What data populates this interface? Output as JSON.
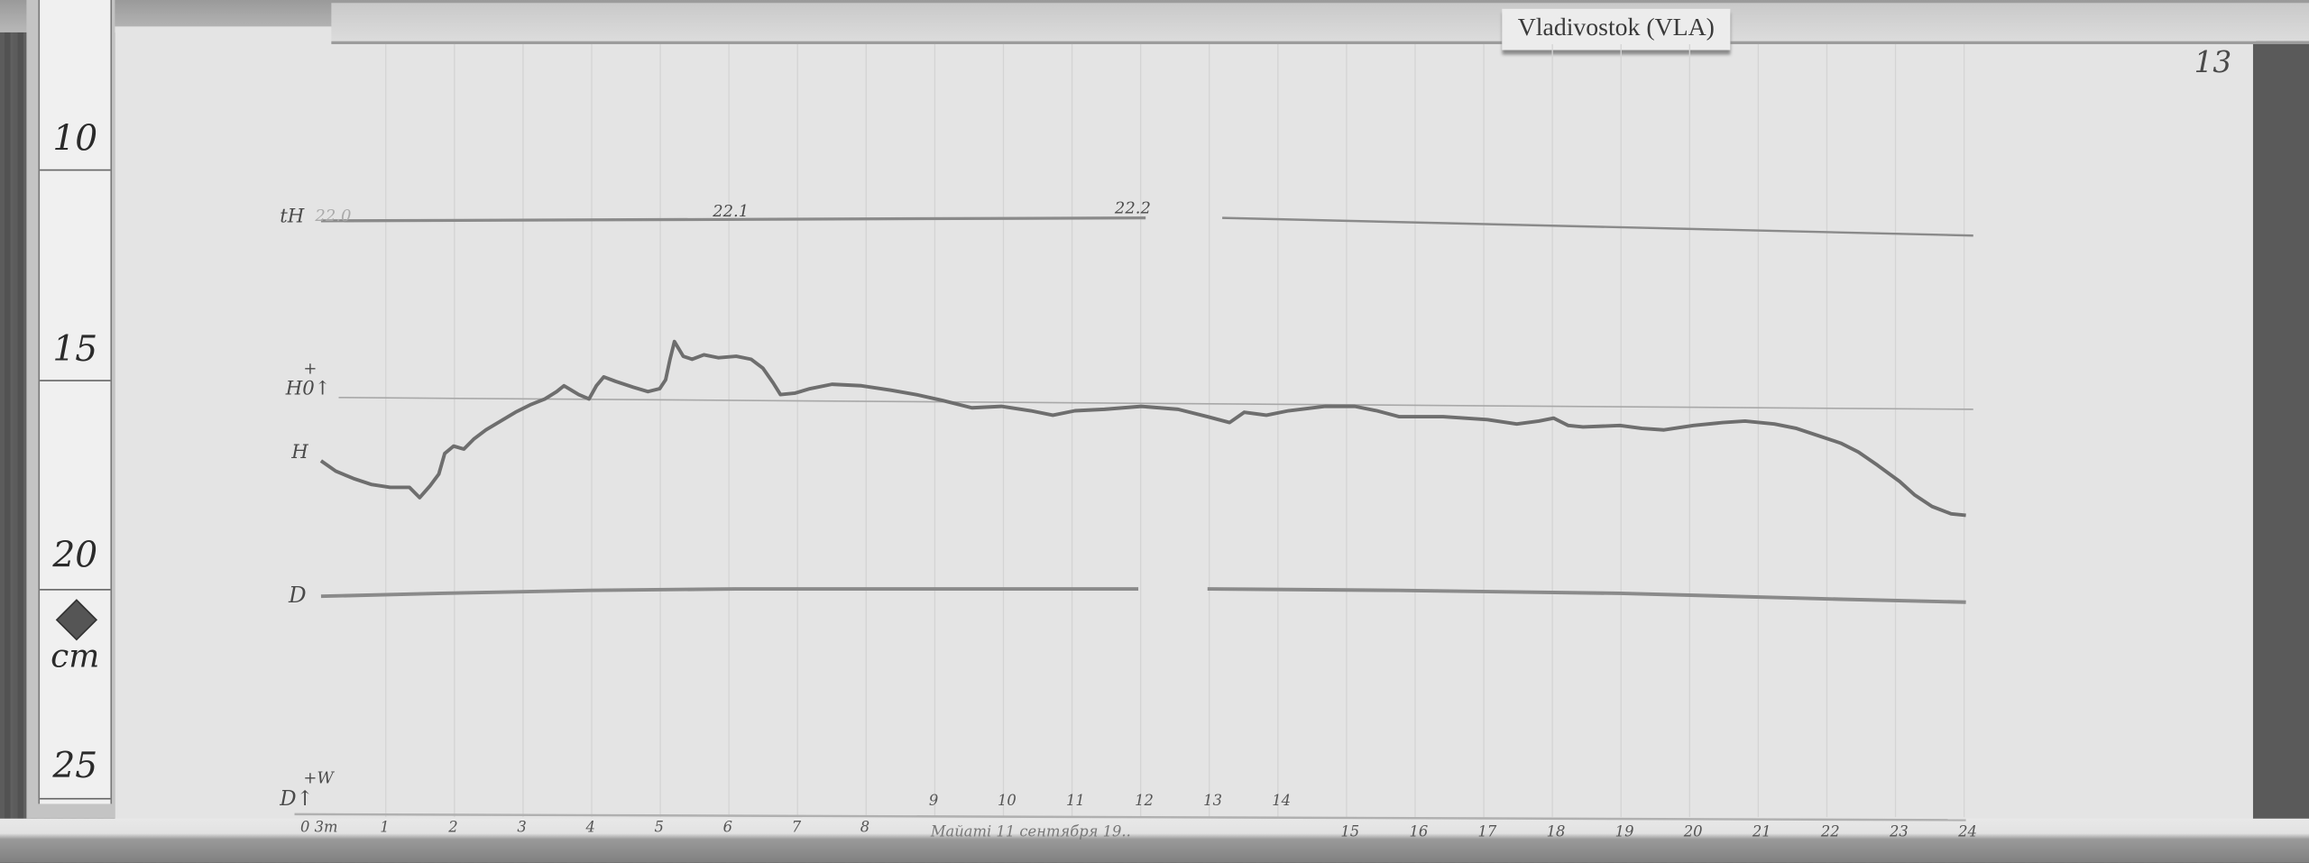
{
  "station_label": "Vladivostok (VLA)",
  "sheet_number": "13",
  "ruler": {
    "marks": [
      "10",
      "15",
      "20",
      "25"
    ],
    "unit": "cm"
  },
  "trace_labels": {
    "temperature": "tH",
    "h_baseline": "H0↑",
    "h_baseline_sign": "+",
    "h": "H",
    "d": "D",
    "d_axis": "D↑",
    "d_axis_sign": "+W"
  },
  "temperature_readings": [
    "22.0",
    "22.1",
    "22.2"
  ],
  "time_axis": {
    "start_label": "0 3m",
    "hours_low": [
      "1",
      "2",
      "3",
      "4",
      "5",
      "6",
      "7",
      "8"
    ],
    "hours_raised": [
      "9",
      "10",
      "11",
      "12",
      "13",
      "14"
    ],
    "hours_high": [
      "15",
      "16",
      "17",
      "18",
      "19",
      "20",
      "21",
      "22",
      "23",
      "24"
    ],
    "date_note": "Майami 11 сентября 19.."
  },
  "colors": {
    "paper": "#e4e4e4",
    "trace": "#7a7a7a",
    "wood": "#5a5a5a"
  }
}
